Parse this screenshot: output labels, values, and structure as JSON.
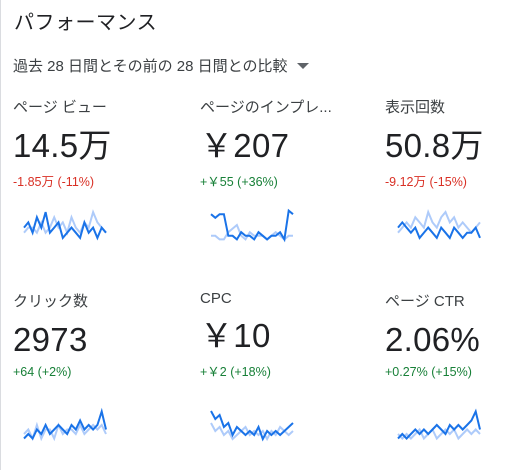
{
  "title": "パフォーマンス",
  "period": {
    "label": "過去 28 日間とその前の 28 日間との比較"
  },
  "colors": {
    "current": "#1a73e8",
    "previous": "#aecbfa",
    "negative": "#d93025",
    "positive": "#188038"
  },
  "metrics": [
    {
      "label": "ページ ビュー",
      "value": "14.5万",
      "delta": "-1.85万 (-11%)",
      "trend": "negative",
      "current": [
        6,
        7,
        5,
        8,
        6,
        9,
        5,
        6,
        7,
        4,
        5,
        6,
        5,
        4,
        7,
        5,
        6,
        4,
        6,
        5
      ],
      "previous": [
        5,
        6,
        6,
        5,
        7,
        5,
        6,
        8,
        6,
        7,
        5,
        8,
        6,
        5,
        7,
        6,
        9,
        7,
        6,
        5
      ]
    },
    {
      "label": "ページのインプレ...",
      "value": "￥207",
      "delta": "+￥55 (+36%)",
      "trend": "positive",
      "current": [
        9,
        8,
        9,
        9,
        3,
        3,
        2,
        4,
        3,
        3,
        2,
        4,
        3,
        2,
        3,
        3,
        4,
        2,
        10,
        9
      ],
      "previous": [
        3,
        3,
        2,
        2,
        4,
        5,
        6,
        3,
        2,
        4,
        3,
        3,
        3,
        2,
        3,
        4,
        3,
        2,
        3,
        3
      ]
    },
    {
      "label": "表示回数",
      "value": "50.8万",
      "delta": "-9.12万 (-15%)",
      "trend": "negative",
      "current": [
        6,
        7,
        6,
        5,
        6,
        4,
        5,
        6,
        5,
        4,
        6,
        5,
        4,
        6,
        5,
        4,
        5,
        5,
        6,
        4
      ],
      "previous": [
        5,
        6,
        7,
        6,
        8,
        7,
        6,
        9,
        7,
        6,
        8,
        9,
        7,
        8,
        6,
        7,
        6,
        5,
        6,
        7
      ]
    },
    {
      "label": "クリック数",
      "value": "2973",
      "delta": "+64 (+2%)",
      "trend": "positive",
      "current": [
        3,
        4,
        3,
        5,
        4,
        6,
        4,
        5,
        6,
        5,
        4,
        6,
        5,
        7,
        5,
        6,
        5,
        6,
        9,
        5
      ],
      "previous": [
        4,
        5,
        3,
        6,
        3,
        5,
        5,
        3,
        6,
        4,
        5,
        5,
        4,
        6,
        4,
        5,
        6,
        5,
        6,
        4
      ]
    },
    {
      "label": "CPC",
      "value": "￥10",
      "delta": "+￥2 (+18%)",
      "trend": "positive",
      "current": [
        9,
        7,
        8,
        5,
        6,
        3,
        5,
        4,
        3,
        4,
        3,
        5,
        2,
        4,
        3,
        4,
        3,
        4,
        5,
        6
      ],
      "previous": [
        6,
        4,
        5,
        3,
        4,
        2,
        3,
        4,
        5,
        3,
        4,
        3,
        4,
        2,
        4,
        3,
        5,
        4,
        3,
        4
      ]
    },
    {
      "label": "ページ CTR",
      "value": "2.06%",
      "delta": "+0.27% (+15%)",
      "trend": "positive",
      "current": [
        3,
        4,
        3,
        4,
        5,
        4,
        5,
        4,
        5,
        6,
        5,
        4,
        6,
        5,
        6,
        5,
        6,
        7,
        9,
        5
      ],
      "previous": [
        4,
        3,
        4,
        3,
        4,
        5,
        3,
        4,
        5,
        3,
        4,
        5,
        4,
        5,
        3,
        4,
        5,
        4,
        5,
        4
      ]
    }
  ]
}
